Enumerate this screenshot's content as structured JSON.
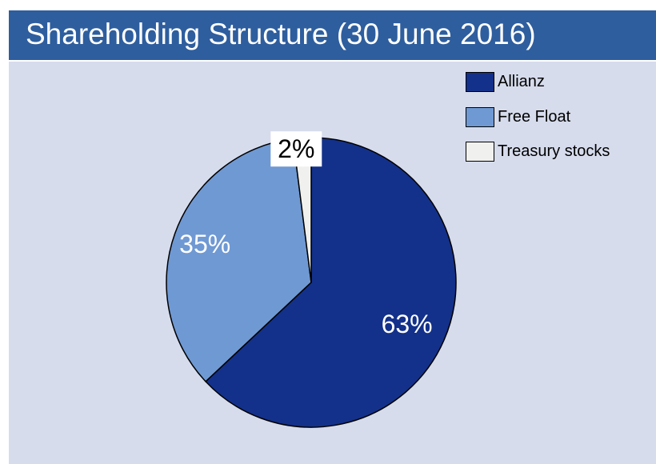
{
  "header": {
    "title": "Shareholding Structure (30 June 2016)"
  },
  "chart_data": {
    "type": "pie",
    "title": "Shareholding Structure (30 June 2016)",
    "slices": [
      {
        "label": "Allianz",
        "value": 63,
        "display": "63%",
        "color": "#13318a",
        "text_color": "#ffffff",
        "label_bg": ""
      },
      {
        "label": "Free Float",
        "value": 35,
        "display": "35%",
        "color": "#6f99d3",
        "text_color": "#ffffff",
        "label_bg": ""
      },
      {
        "label": "Treasury stocks",
        "value": 2,
        "display": "2%",
        "color": "#f0f0ee",
        "text_color": "#000000",
        "label_bg": "#ffffff"
      }
    ],
    "legend_position": "top-right",
    "start_angle_deg": 0,
    "direction": "clockwise"
  }
}
